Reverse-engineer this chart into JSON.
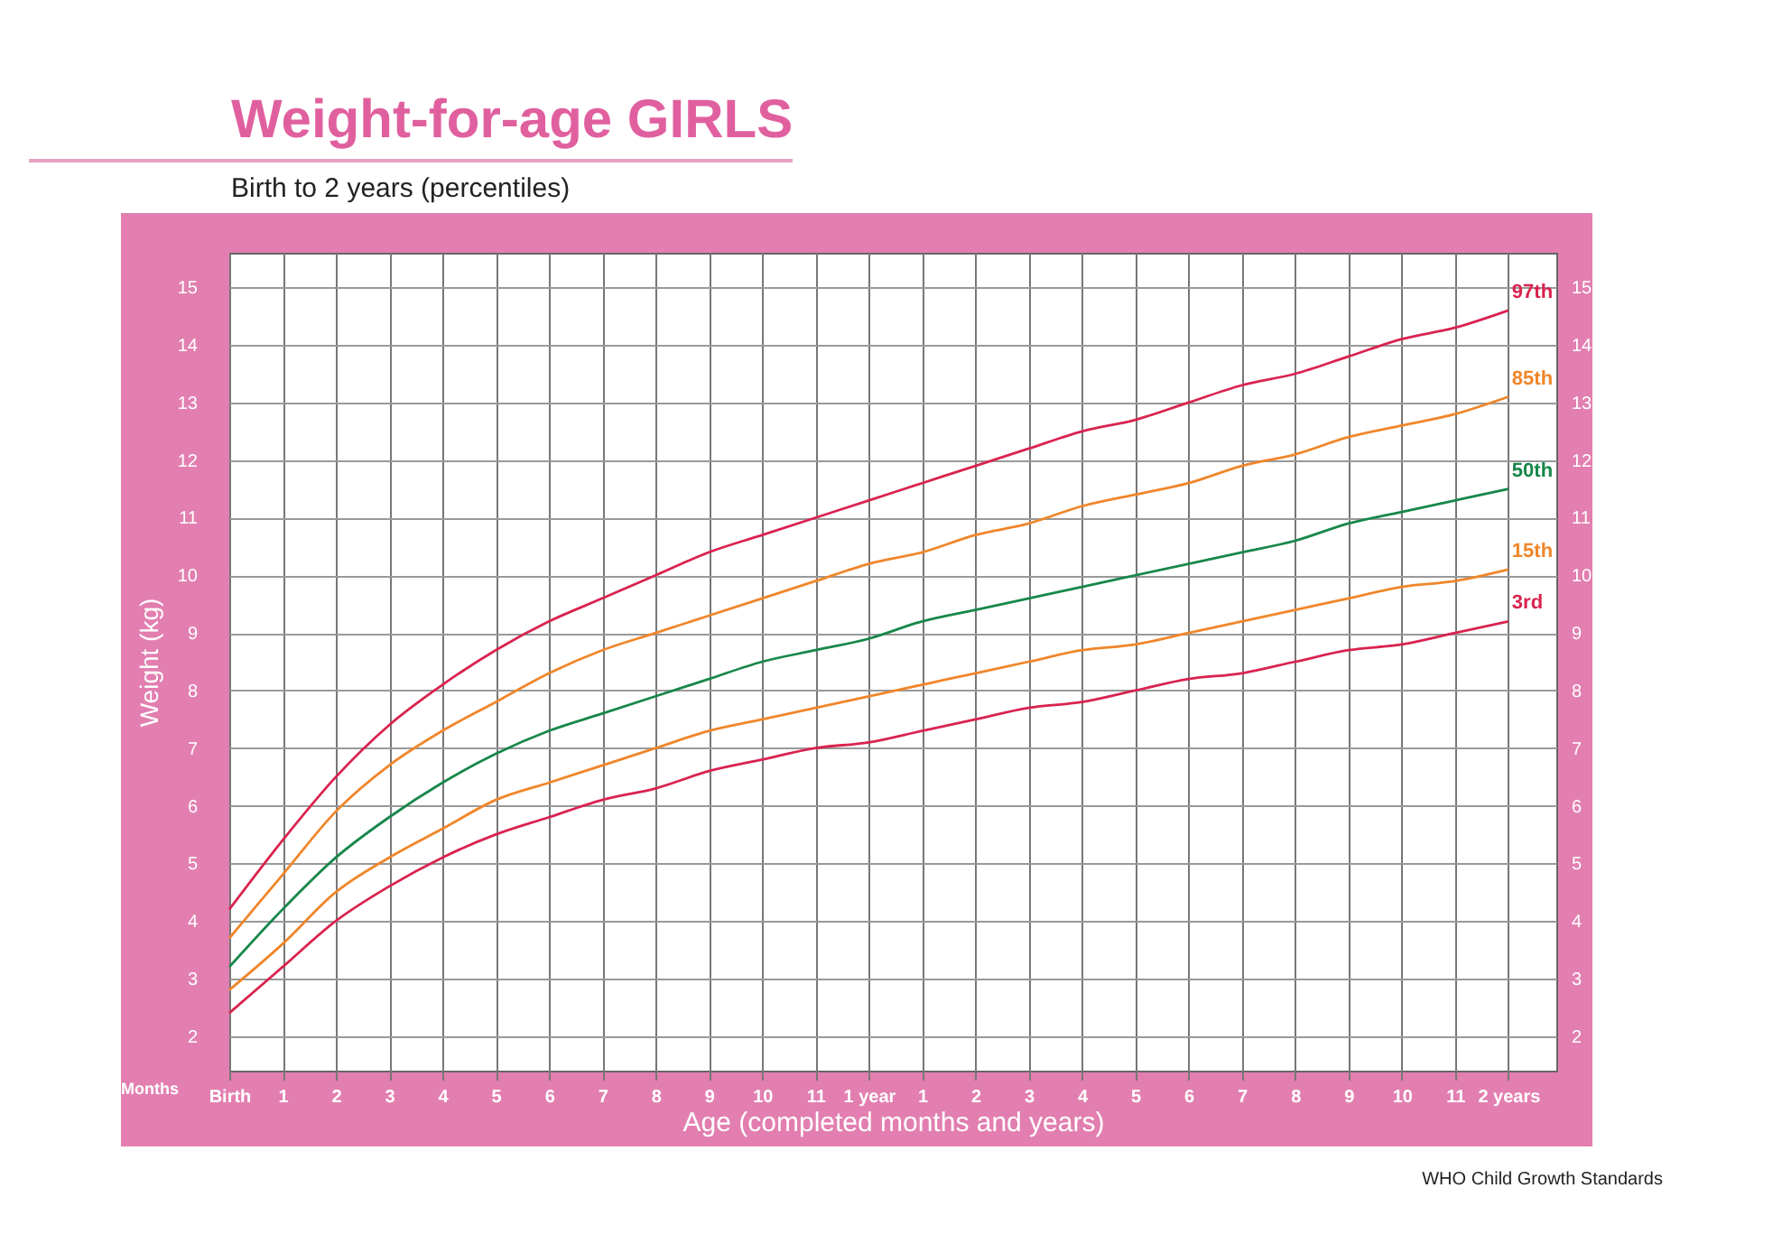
{
  "chart_data": {
    "type": "line",
    "title": "Weight-for-age GIRLS",
    "subtitle": "Birth to 2 years (percentiles)",
    "xlabel": "Age (completed months and years)",
    "ylabel": "Weight (kg)",
    "annotations": [
      "Months",
      "WHO Child Growth Standards"
    ],
    "categories": [
      "Birth",
      "1",
      "2",
      "3",
      "4",
      "5",
      "6",
      "7",
      "8",
      "9",
      "10",
      "11",
      "1 year",
      "1",
      "2",
      "3",
      "4",
      "5",
      "6",
      "7",
      "8",
      "9",
      "10",
      "11",
      "2 years"
    ],
    "series": [
      {
        "name": "97th",
        "color": "#d9234f",
        "values": [
          4.2,
          5.4,
          6.5,
          7.4,
          8.1,
          8.7,
          9.2,
          9.6,
          10.0,
          10.4,
          10.7,
          11.0,
          11.3,
          11.6,
          11.9,
          12.2,
          12.5,
          12.7,
          13.0,
          13.3,
          13.5,
          13.8,
          14.1,
          14.3,
          14.6
        ]
      },
      {
        "name": "85th",
        "color": "#f0862a",
        "values": [
          3.7,
          4.8,
          5.9,
          6.7,
          7.3,
          7.8,
          8.3,
          8.7,
          9.0,
          9.3,
          9.6,
          9.9,
          10.2,
          10.4,
          10.7,
          10.9,
          11.2,
          11.4,
          11.6,
          11.9,
          12.1,
          12.4,
          12.6,
          12.8,
          13.1
        ]
      },
      {
        "name": "50th",
        "color": "#17874a",
        "values": [
          3.2,
          4.2,
          5.1,
          5.8,
          6.4,
          6.9,
          7.3,
          7.6,
          7.9,
          8.2,
          8.5,
          8.7,
          8.9,
          9.2,
          9.4,
          9.6,
          9.8,
          10.0,
          10.2,
          10.4,
          10.6,
          10.9,
          11.1,
          11.3,
          11.5
        ]
      },
      {
        "name": "15th",
        "color": "#f0862a",
        "values": [
          2.8,
          3.6,
          4.5,
          5.1,
          5.6,
          6.1,
          6.4,
          6.7,
          7.0,
          7.3,
          7.5,
          7.7,
          7.9,
          8.1,
          8.3,
          8.5,
          8.7,
          8.8,
          9.0,
          9.2,
          9.4,
          9.6,
          9.8,
          9.9,
          10.1
        ]
      },
      {
        "name": "3rd",
        "color": "#d9234f",
        "values": [
          2.4,
          3.2,
          4.0,
          4.6,
          5.1,
          5.5,
          5.8,
          6.1,
          6.3,
          6.6,
          6.8,
          7.0,
          7.1,
          7.3,
          7.5,
          7.7,
          7.8,
          8.0,
          8.2,
          8.3,
          8.5,
          8.7,
          8.8,
          9.0,
          9.2
        ]
      }
    ],
    "ylim": [
      1.4,
      15.6
    ],
    "yticks": [
      2,
      3,
      4,
      5,
      6,
      7,
      8,
      9,
      10,
      11,
      12,
      13,
      14,
      15
    ],
    "y2lim": [
      1.4,
      15.6
    ],
    "y2ticks": [
      2,
      3,
      4,
      5,
      6,
      7,
      8,
      9,
      10,
      11,
      12,
      13,
      14,
      15
    ],
    "grid": true,
    "legend": false,
    "marker": "none",
    "line_style": "solid"
  }
}
